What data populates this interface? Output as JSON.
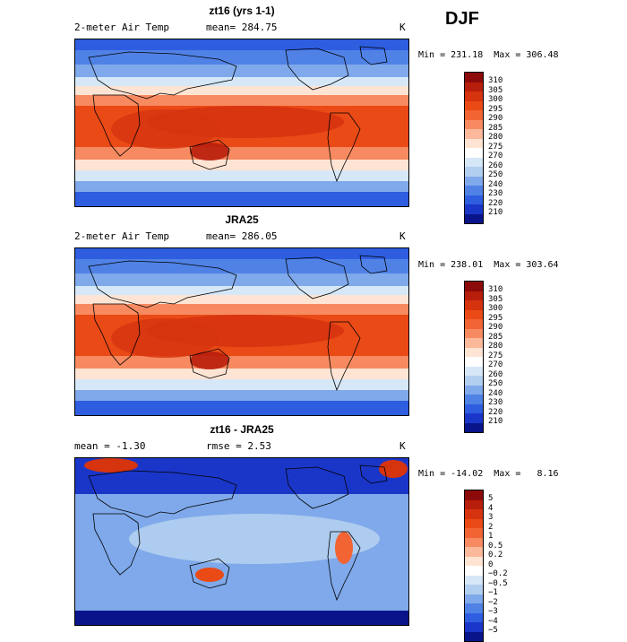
{
  "season": "DJF",
  "panels": [
    {
      "title": "zt16 (yrs 1-1)",
      "left_label": "2-meter Air Temp",
      "mid_label": "mean=  284.75",
      "unit": "K",
      "minmax": "Min = 231.18  Max = 306.48",
      "kind": "temp",
      "colorbar": {
        "labels": [
          "310",
          "305",
          "300",
          "295",
          "290",
          "285",
          "280",
          "275",
          "270",
          "260",
          "250",
          "240",
          "230",
          "220",
          "210"
        ],
        "colors": [
          "#8c0a0a",
          "#b81e0c",
          "#d6330f",
          "#ea4a16",
          "#f26433",
          "#f78a60",
          "#fbb89a",
          "#ffe4d4",
          "#ffffff",
          "#d6e8f8",
          "#b2cff0",
          "#7fa9ea",
          "#5082e6",
          "#2e5de0",
          "#1a36c8",
          "#0a148a"
        ]
      }
    },
    {
      "title": "JRA25",
      "left_label": "2-meter Air Temp",
      "mid_label": "mean=  286.05",
      "unit": "K",
      "minmax": "Min = 238.01  Max = 303.64",
      "kind": "temp",
      "colorbar": {
        "labels": [
          "310",
          "305",
          "300",
          "295",
          "290",
          "285",
          "280",
          "275",
          "270",
          "260",
          "250",
          "240",
          "230",
          "220",
          "210"
        ],
        "colors": [
          "#8c0a0a",
          "#b81e0c",
          "#d6330f",
          "#ea4a16",
          "#f26433",
          "#f78a60",
          "#fbb89a",
          "#ffe4d4",
          "#ffffff",
          "#d6e8f8",
          "#b2cff0",
          "#7fa9ea",
          "#5082e6",
          "#2e5de0",
          "#1a36c8",
          "#0a148a"
        ]
      }
    },
    {
      "title": "zt16 - JRA25",
      "left_label": "mean =   -1.30",
      "mid_label": "rmse =    2.53",
      "unit": "K",
      "minmax": "Min = -14.02  Max =   8.16",
      "kind": "diff",
      "colorbar": {
        "labels": [
          "5",
          "4",
          "3",
          "2",
          "1",
          "0.5",
          "0.2",
          "0",
          "−0.2",
          "−0.5",
          "−1",
          "−2",
          "−3",
          "−4",
          "−5"
        ],
        "colors": [
          "#8c0a0a",
          "#b81e0c",
          "#d6330f",
          "#ea4a16",
          "#f26433",
          "#f78a60",
          "#fbb89a",
          "#ffe4d4",
          "#ffffff",
          "#d6e8f8",
          "#b2cff0",
          "#7fa9ea",
          "#5082e6",
          "#2e5de0",
          "#1a36c8",
          "#0a148a"
        ]
      }
    }
  ]
}
